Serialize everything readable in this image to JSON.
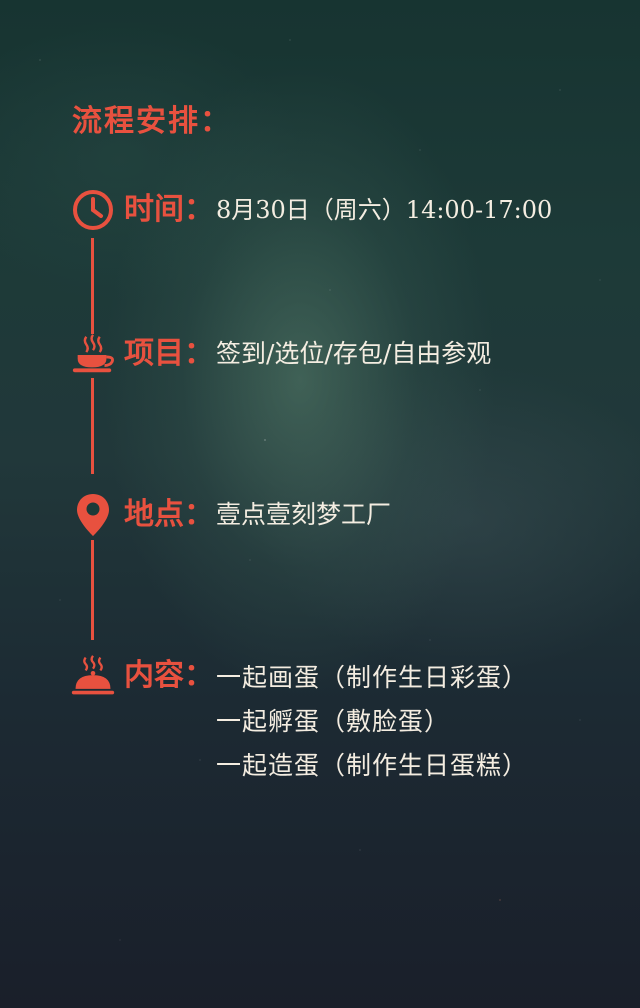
{
  "heading": "流程安排：",
  "accent_color": "#e8513f",
  "text_color": "#f4ede1",
  "items": [
    {
      "icon": "clock-icon",
      "label": "时间：",
      "value": "8月30日（周六）14:00-17:00"
    },
    {
      "icon": "coffee-cup-icon",
      "label": "项目：",
      "value": "签到/选位/存包/自由参观"
    },
    {
      "icon": "location-pin-icon",
      "label": "地点：",
      "value": "壹点壹刻梦工厂"
    },
    {
      "icon": "food-cloche-icon",
      "label": "内容：",
      "lines": [
        "一起画蛋（制作生日彩蛋）",
        "一起孵蛋（敷脸蛋）",
        "一起造蛋（制作生日蛋糕）"
      ]
    }
  ]
}
